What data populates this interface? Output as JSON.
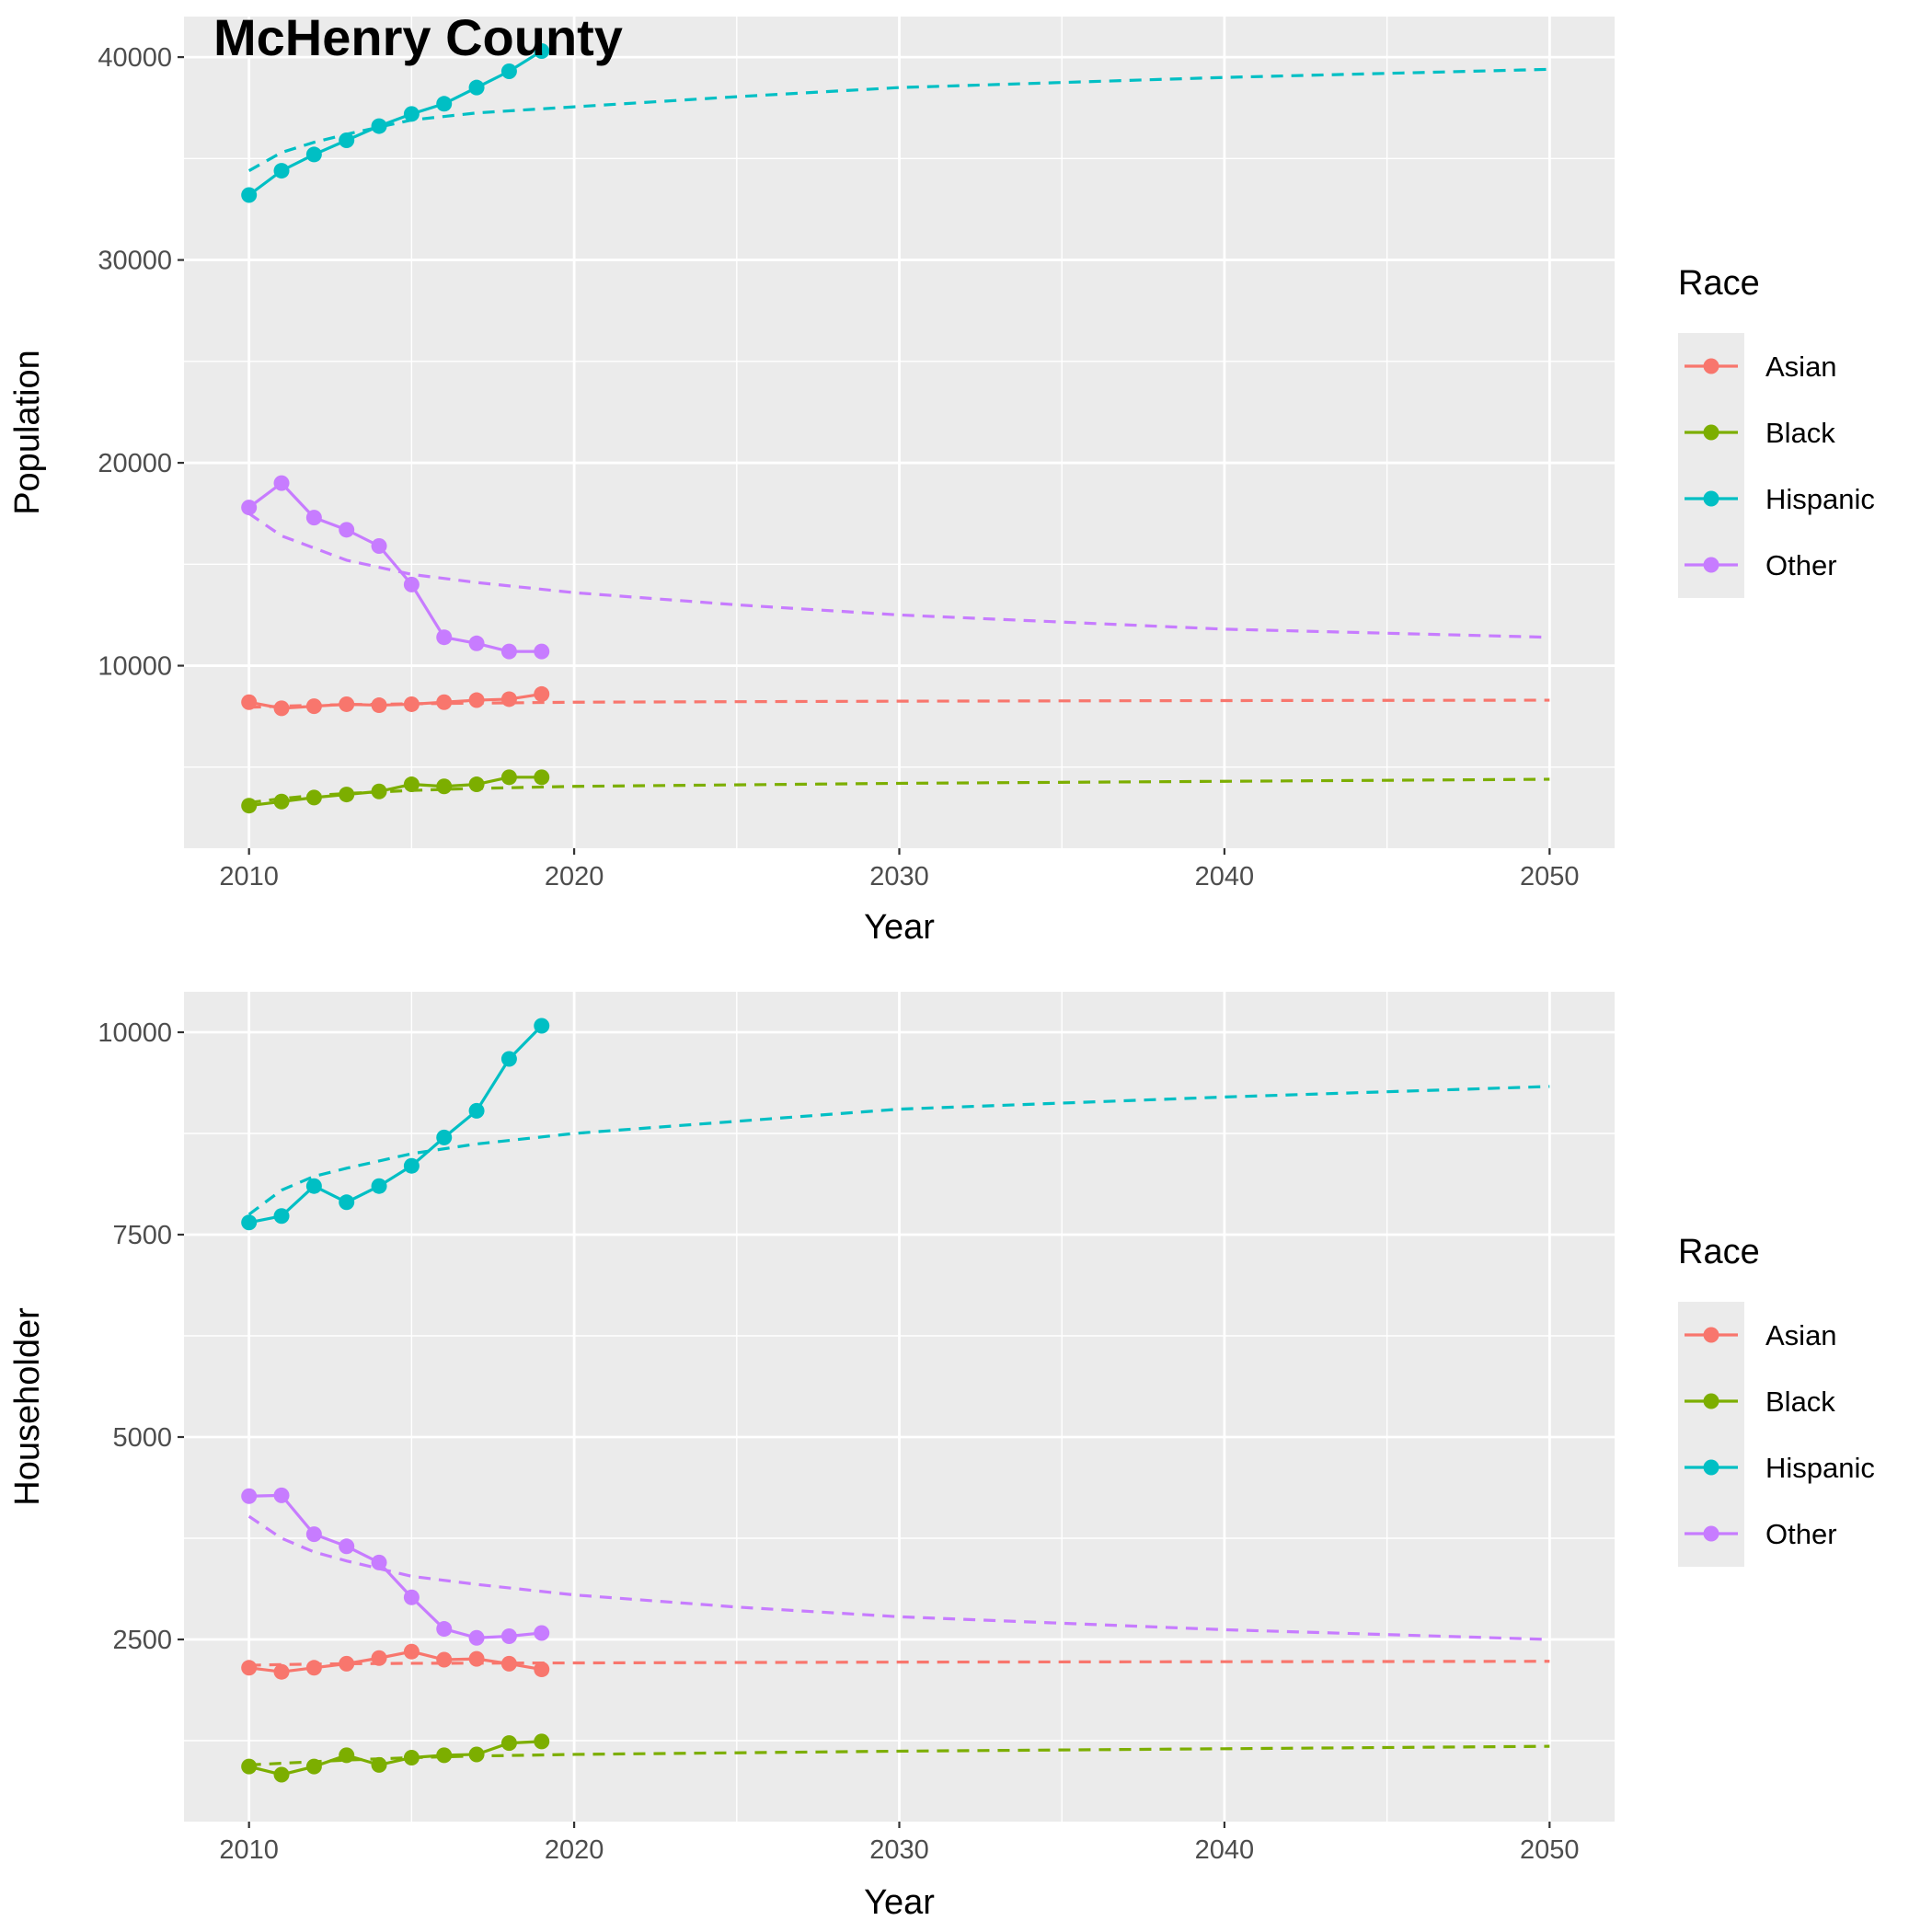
{
  "title": "McHenry County",
  "chart_data": [
    {
      "type": "line",
      "title": "McHenry County",
      "xlabel": "Year",
      "ylabel": "Population",
      "xlim": [
        2008,
        2052
      ],
      "ylim": [
        1000,
        42000
      ],
      "xticks": [
        2010,
        2020,
        2030,
        2040,
        2050
      ],
      "yticks": [
        10000,
        20000,
        30000,
        40000
      ],
      "legend_title": "Race",
      "legend_position": "right",
      "grid": true,
      "series": [
        {
          "name": "Asian",
          "color": "#F8766D",
          "observed": {
            "x": [
              2010,
              2011,
              2012,
              2013,
              2014,
              2015,
              2016,
              2017,
              2018,
              2019
            ],
            "y": [
              8200,
              7900,
              8000,
              8100,
              8050,
              8100,
              8200,
              8300,
              8350,
              8600
            ]
          },
          "projection": {
            "x": [
              2010,
              2011,
              2012,
              2013,
              2015,
              2020,
              2030,
              2040,
              2050
            ],
            "y": [
              7950,
              8000,
              8050,
              8080,
              8120,
              8200,
              8250,
              8280,
              8300
            ]
          }
        },
        {
          "name": "Black",
          "color": "#7CAE00",
          "observed": {
            "x": [
              2010,
              2011,
              2012,
              2013,
              2014,
              2015,
              2016,
              2017,
              2018,
              2019
            ],
            "y": [
              3100,
              3300,
              3500,
              3650,
              3800,
              4150,
              4050,
              4150,
              4500,
              4500
            ]
          },
          "projection": {
            "x": [
              2010,
              2011,
              2012,
              2013,
              2015,
              2017,
              2020,
              2030,
              2040,
              2050
            ],
            "y": [
              3250,
              3450,
              3600,
              3700,
              3850,
              3950,
              4050,
              4200,
              4300,
              4400
            ]
          }
        },
        {
          "name": "Hispanic",
          "color": "#00BFC4",
          "observed": {
            "x": [
              2010,
              2011,
              2012,
              2013,
              2014,
              2015,
              2016,
              2017,
              2018,
              2019
            ],
            "y": [
              33200,
              34400,
              35200,
              35900,
              36600,
              37200,
              37700,
              38500,
              39300,
              40300
            ]
          },
          "projection": {
            "x": [
              2010,
              2011,
              2012,
              2013,
              2015,
              2017,
              2020,
              2025,
              2030,
              2040,
              2050
            ],
            "y": [
              34400,
              35300,
              35800,
              36200,
              36900,
              37250,
              37550,
              38050,
              38500,
              39000,
              39400
            ]
          }
        },
        {
          "name": "Other",
          "color": "#C77CFF",
          "observed": {
            "x": [
              2010,
              2011,
              2012,
              2013,
              2014,
              2015,
              2016,
              2017,
              2018,
              2019
            ],
            "y": [
              17800,
              19000,
              17300,
              16700,
              15900,
              14000,
              11400,
              11100,
              10700,
              10700
            ]
          },
          "projection": {
            "x": [
              2010,
              2011,
              2012,
              2013,
              2015,
              2017,
              2020,
              2025,
              2030,
              2040,
              2050
            ],
            "y": [
              17500,
              16400,
              15800,
              15200,
              14500,
              14100,
              13600,
              13000,
              12500,
              11800,
              11400
            ]
          }
        }
      ]
    },
    {
      "type": "line",
      "xlabel": "Year",
      "ylabel": "Householder",
      "xlim": [
        2008,
        2052
      ],
      "ylim": [
        250,
        10500
      ],
      "xticks": [
        2010,
        2020,
        2030,
        2040,
        2050
      ],
      "yticks": [
        2500,
        5000,
        7500,
        10000
      ],
      "legend_title": "Race",
      "legend_position": "right",
      "grid": true,
      "series": [
        {
          "name": "Asian",
          "color": "#F8766D",
          "observed": {
            "x": [
              2010,
              2011,
              2012,
              2013,
              2014,
              2015,
              2016,
              2017,
              2018,
              2019
            ],
            "y": [
              2150,
              2100,
              2150,
              2200,
              2270,
              2350,
              2250,
              2260,
              2200,
              2130
            ]
          },
          "projection": {
            "x": [
              2010,
              2011,
              2012,
              2013,
              2015,
              2020,
              2030,
              2040,
              2050
            ],
            "y": [
              2180,
              2190,
              2195,
              2200,
              2205,
              2210,
              2220,
              2225,
              2230
            ]
          }
        },
        {
          "name": "Black",
          "color": "#7CAE00",
          "observed": {
            "x": [
              2010,
              2011,
              2012,
              2013,
              2014,
              2015,
              2016,
              2017,
              2018,
              2019
            ],
            "y": [
              930,
              830,
              930,
              1070,
              950,
              1040,
              1070,
              1080,
              1220,
              1240
            ]
          },
          "projection": {
            "x": [
              2010,
              2011,
              2012,
              2013,
              2015,
              2017,
              2020,
              2030,
              2040,
              2050
            ],
            "y": [
              950,
              970,
              990,
              1010,
              1040,
              1060,
              1080,
              1120,
              1150,
              1180
            ]
          }
        },
        {
          "name": "Hispanic",
          "color": "#00BFC4",
          "observed": {
            "x": [
              2010,
              2011,
              2012,
              2013,
              2014,
              2015,
              2016,
              2017,
              2018,
              2019
            ],
            "y": [
              7650,
              7730,
              8100,
              7900,
              8100,
              8350,
              8700,
              9030,
              9670,
              10080
            ]
          },
          "projection": {
            "x": [
              2010,
              2011,
              2012,
              2013,
              2015,
              2017,
              2020,
              2025,
              2030,
              2040,
              2050
            ],
            "y": [
              7750,
              8050,
              8220,
              8320,
              8500,
              8620,
              8750,
              8900,
              9050,
              9200,
              9330
            ]
          }
        },
        {
          "name": "Other",
          "color": "#C77CFF",
          "observed": {
            "x": [
              2010,
              2011,
              2012,
              2013,
              2014,
              2015,
              2016,
              2017,
              2018,
              2019
            ],
            "y": [
              4270,
              4280,
              3800,
              3650,
              3450,
              3020,
              2630,
              2520,
              2540,
              2580
            ]
          },
          "projection": {
            "x": [
              2010,
              2011,
              2012,
              2013,
              2015,
              2017,
              2020,
              2025,
              2030,
              2040,
              2050
            ],
            "y": [
              4020,
              3750,
              3580,
              3470,
              3280,
              3180,
              3050,
              2900,
              2780,
              2620,
              2500
            ]
          }
        }
      ]
    }
  ]
}
